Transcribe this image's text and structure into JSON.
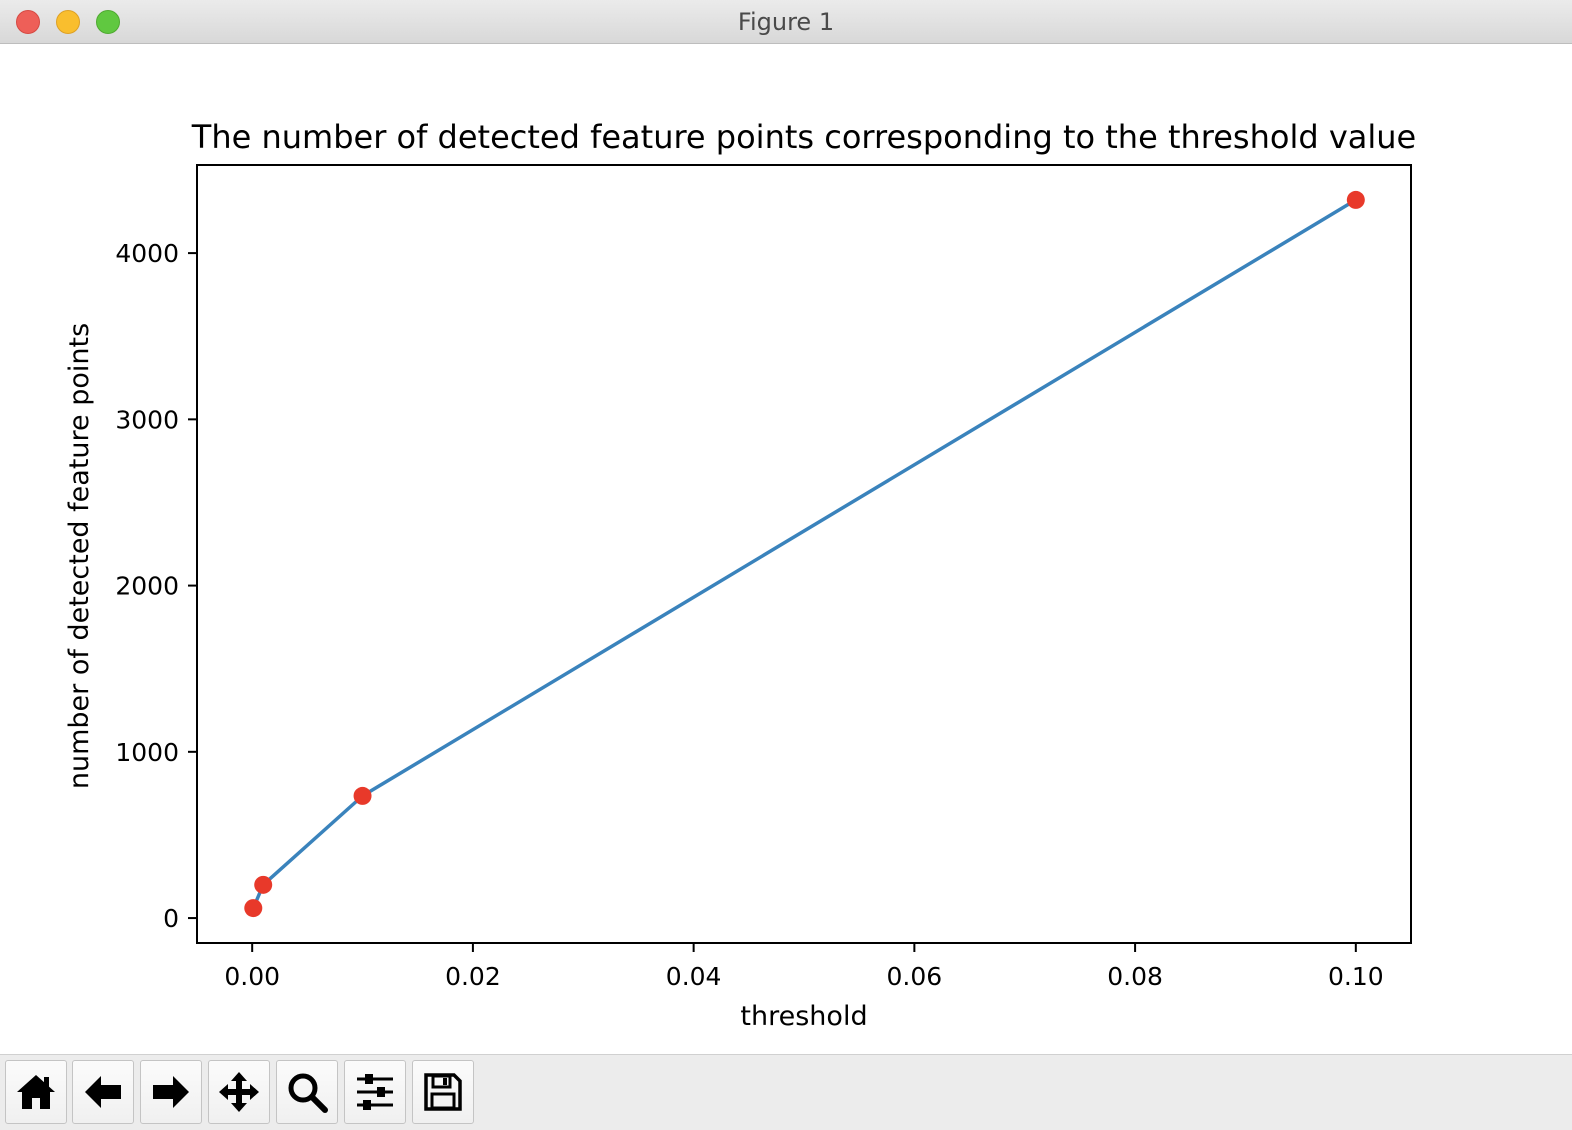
{
  "window": {
    "title": "Figure 1"
  },
  "toolbar": {
    "buttons": [
      {
        "name": "home",
        "icon": "home-icon"
      },
      {
        "name": "back",
        "icon": "arrow-left-icon"
      },
      {
        "name": "forward",
        "icon": "arrow-right-icon"
      },
      {
        "name": "pan",
        "icon": "move-icon"
      },
      {
        "name": "zoom",
        "icon": "magnifier-icon"
      },
      {
        "name": "configure-subplots",
        "icon": "sliders-icon"
      },
      {
        "name": "save",
        "icon": "floppy-disk-icon"
      }
    ]
  },
  "chart_data": {
    "type": "line",
    "title": "The number of detected feature points corresponding to the threshold value",
    "xlabel": "threshold",
    "ylabel": "number of detected feature points",
    "x": [
      0.0001,
      0.001,
      0.01,
      0.1
    ],
    "series": [
      {
        "values": [
          60,
          200,
          735,
          4320
        ],
        "line_color": "#3a83bc",
        "marker_color": "#e8392a",
        "marker": "circle"
      }
    ],
    "xlim": [
      -0.005,
      0.105
    ],
    "ylim": [
      -150,
      4530
    ],
    "xticks": [
      0.0,
      0.02,
      0.04,
      0.06,
      0.08,
      0.1
    ],
    "xtick_labels": [
      "0.00",
      "0.02",
      "0.04",
      "0.06",
      "0.08",
      "0.10"
    ],
    "yticks": [
      0,
      1000,
      2000,
      3000,
      4000
    ],
    "ytick_labels": [
      "0",
      "1000",
      "2000",
      "3000",
      "4000"
    ],
    "grid": false,
    "legend": false
  }
}
